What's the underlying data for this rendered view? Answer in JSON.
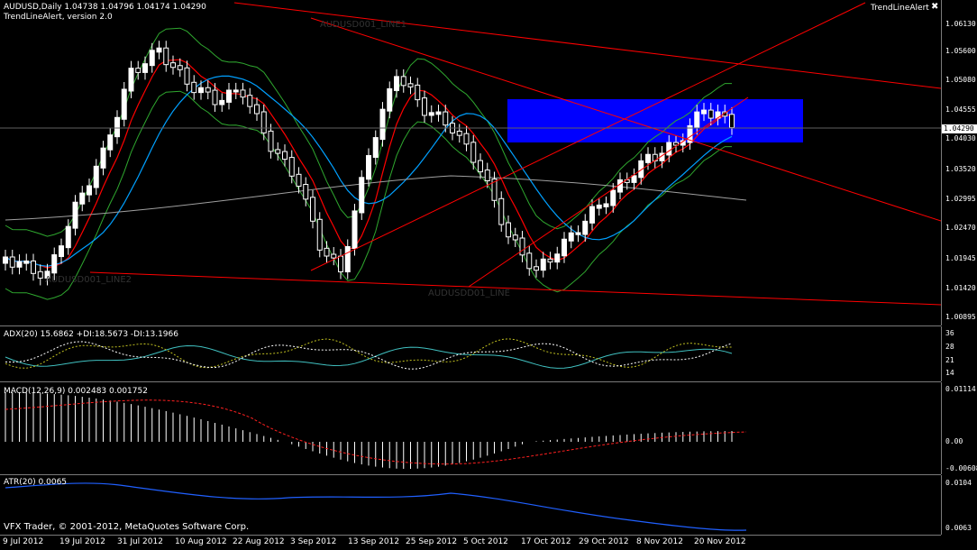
{
  "main": {
    "symbol_line": "AUDUSD,Daily  1.04738 1.04796 1.04174 1.04290",
    "indicator_line": "TrendLineAlert, version 2.0",
    "indicator_window_title": "TrendLineAlert",
    "current_price": "1.04290",
    "price_ticks": [
      "1.06130",
      "1.05600",
      "1.05080",
      "1.04555",
      "1.04030",
      "1.03520",
      "1.02995",
      "1.02470",
      "1.01945",
      "1.01420",
      "1.00895"
    ],
    "object_labels": [
      "AUDUSD001_LINE1",
      "AUDUSD001_LINE2",
      "AUDUSDD01_LINE"
    ]
  },
  "adx": {
    "label": "ADX(20) 15.6862 +DI:18.5673 -DI:13.1966",
    "ticks": [
      "36",
      "28",
      "21",
      "14"
    ]
  },
  "macd": {
    "label": "MACD(12,26,9) 0.002483 0.001752",
    "ticks": [
      "0.01114",
      "0.00",
      "-0.00608"
    ]
  },
  "atr": {
    "label": "ATR(20) 0.0065",
    "ticks": [
      "0.0104",
      "0.0063"
    ],
    "copyright": "VFX Trader, © 2001-2012, MetaQuotes Software Corp."
  },
  "dates": [
    "9 Jul 2012",
    "19 Jul 2012",
    "31 Jul 2012",
    "10 Aug 2012",
    "22 Aug 2012",
    "3 Sep 2012",
    "13 Sep 2012",
    "25 Sep 2012",
    "5 Oct 2012",
    "17 Oct 2012",
    "29 Oct 2012",
    "8 Nov 2012",
    "20 Nov 2012"
  ],
  "colors": {
    "bg": "#000000",
    "bull": "#ffffff",
    "bear": "#000000",
    "trend": "#ff0000",
    "zone": "#0000ff",
    "bb": "#2fa82f",
    "ma20": "#ff0000",
    "ma50": "#00a0ff",
    "ma200": "#a0a0a0",
    "adx": "#40c0c0",
    "plusdi": "#c0c020",
    "minusdi": "#ffffff",
    "macd_signal": "#ff2020",
    "atr": "#2060ff"
  }
}
